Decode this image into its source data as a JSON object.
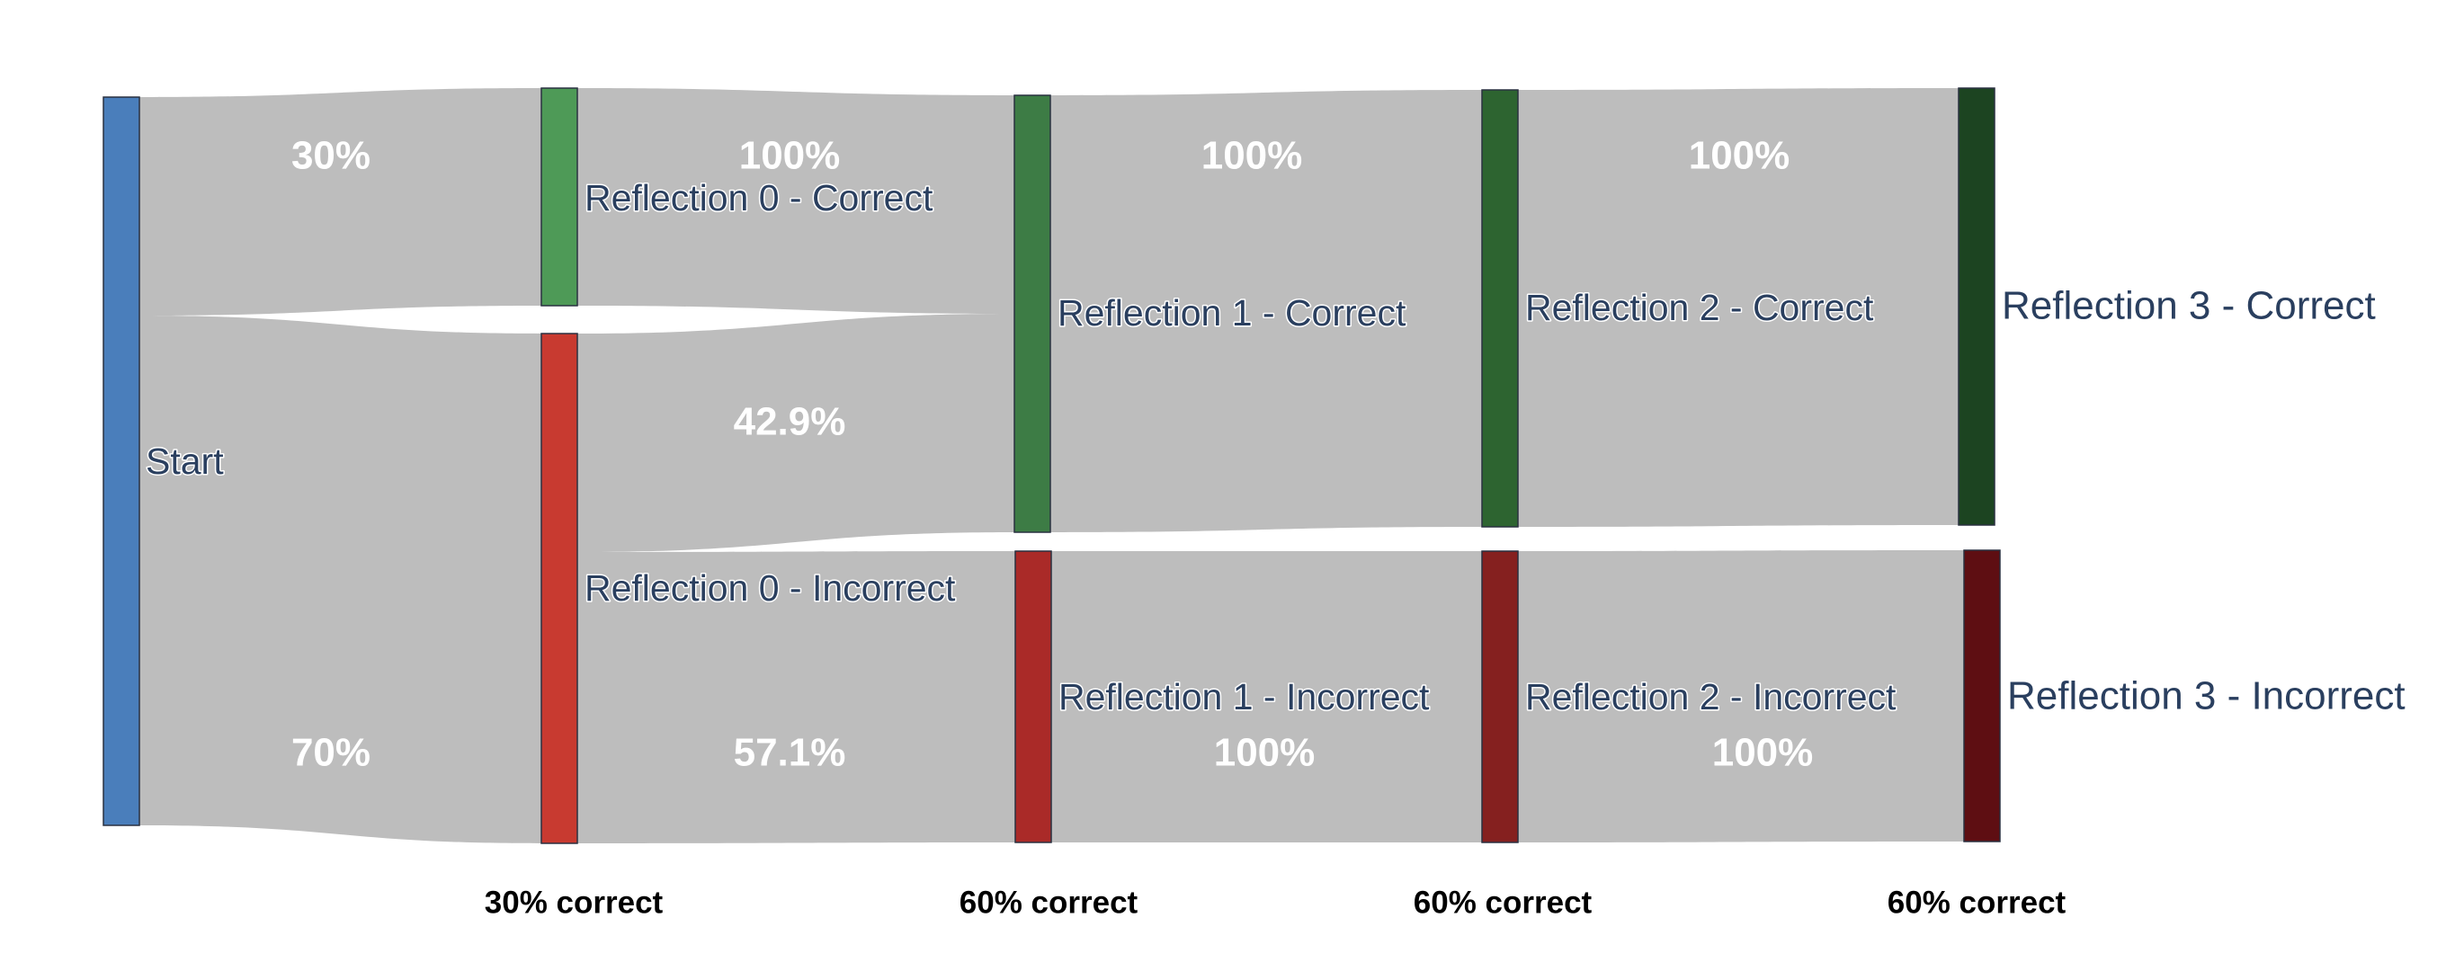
{
  "chart_data": {
    "type": "sankey",
    "nodes": [
      {
        "id": "start",
        "label": "Start",
        "color": "#4a7ebb"
      },
      {
        "id": "r0c",
        "label": "Reflection 0 - Correct",
        "color": "#4e9a57"
      },
      {
        "id": "r0i",
        "label": "Reflection 0 - Incorrect",
        "color": "#c83a30"
      },
      {
        "id": "r1c",
        "label": "Reflection 1 - Correct",
        "color": "#3d7c45"
      },
      {
        "id": "r1i",
        "label": "Reflection 1 - Incorrect",
        "color": "#aa2a28"
      },
      {
        "id": "r2c",
        "label": "Reflection 2 - Correct",
        "color": "#2d6430"
      },
      {
        "id": "r2i",
        "label": "Reflection 2 - Incorrect",
        "color": "#85201f"
      },
      {
        "id": "r3c",
        "label": "Reflection 3 - Correct",
        "color": "#1c4421"
      },
      {
        "id": "r3i",
        "label": "Reflection 3 - Incorrect",
        "color": "#5e0e12"
      }
    ],
    "links": [
      {
        "source": "start",
        "target": "r0c",
        "value": 30,
        "label": "30%"
      },
      {
        "source": "start",
        "target": "r0i",
        "value": 70,
        "label": "70%"
      },
      {
        "source": "r0c",
        "target": "r1c",
        "value": 30,
        "label": "100%"
      },
      {
        "source": "r0i",
        "target": "r1c",
        "value": 30,
        "label": "42.9%"
      },
      {
        "source": "r0i",
        "target": "r1i",
        "value": 40,
        "label": "57.1%"
      },
      {
        "source": "r1c",
        "target": "r2c",
        "value": 60,
        "label": "100%"
      },
      {
        "source": "r1i",
        "target": "r2i",
        "value": 40,
        "label": "100%"
      },
      {
        "source": "r2c",
        "target": "r3c",
        "value": 60,
        "label": "100%"
      },
      {
        "source": "r2i",
        "target": "r3i",
        "value": 40,
        "label": "100%"
      }
    ],
    "stage_labels": [
      "30% correct",
      "60% correct",
      "60% correct",
      "60% correct"
    ]
  }
}
